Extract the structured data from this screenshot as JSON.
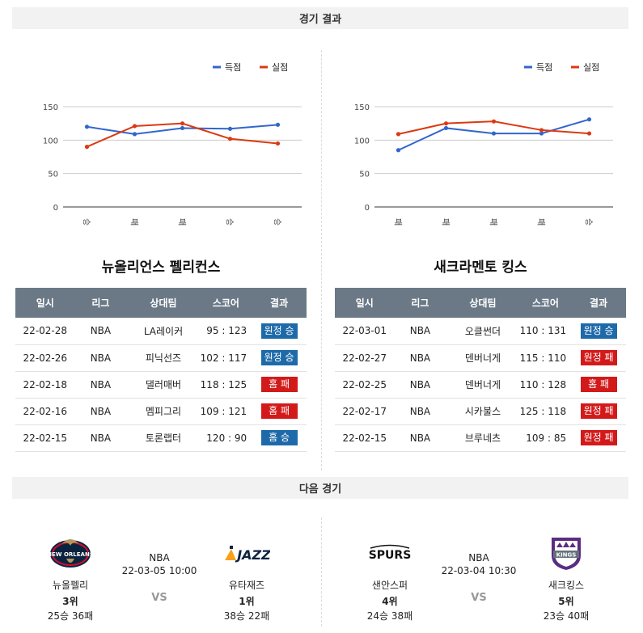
{
  "sections": {
    "results_title": "경기 결과",
    "next_title": "다음 경기"
  },
  "chart_data": [
    {
      "type": "line",
      "categories": [
        "승",
        "패",
        "패",
        "승",
        "승"
      ],
      "series": [
        {
          "name": "득점",
          "color": "#3366cc",
          "values": [
            120,
            109,
            118,
            117,
            123
          ]
        },
        {
          "name": "실점",
          "color": "#dc3912",
          "values": [
            90,
            121,
            125,
            102,
            95
          ]
        }
      ],
      "yticks": [
        0,
        50,
        100,
        150
      ],
      "ylim": [
        0,
        150
      ],
      "legend": "top-right",
      "grid": true
    },
    {
      "type": "line",
      "categories": [
        "패",
        "패",
        "패",
        "패",
        "승"
      ],
      "series": [
        {
          "name": "득점",
          "color": "#3366cc",
          "values": [
            85,
            118,
            110,
            110,
            131
          ]
        },
        {
          "name": "실점",
          "color": "#dc3912",
          "values": [
            109,
            125,
            128,
            115,
            110
          ]
        }
      ],
      "yticks": [
        0,
        50,
        100,
        150
      ],
      "ylim": [
        0,
        150
      ],
      "legend": "top-right",
      "grid": true
    }
  ],
  "left": {
    "team_name": "뉴올리언스 펠리컨스",
    "headers": [
      "일시",
      "리그",
      "상대팀",
      "스코어",
      "결과"
    ],
    "rows": [
      {
        "date": "22-02-28",
        "league": "NBA",
        "opponent": "LA레이커",
        "score": "95 : 123",
        "result": "원정 승",
        "color": "blue"
      },
      {
        "date": "22-02-26",
        "league": "NBA",
        "opponent": "피닉선즈",
        "score": "102 : 117",
        "result": "원정 승",
        "color": "blue"
      },
      {
        "date": "22-02-18",
        "league": "NBA",
        "opponent": "댈러매버",
        "score": "118 : 125",
        "result": "홈 패",
        "color": "red"
      },
      {
        "date": "22-02-16",
        "league": "NBA",
        "opponent": "멤피그리",
        "score": "109 : 121",
        "result": "홈 패",
        "color": "red"
      },
      {
        "date": "22-02-15",
        "league": "NBA",
        "opponent": "토론랩터",
        "score": "120 : 90",
        "result": "홈 승",
        "color": "blue"
      }
    ]
  },
  "right": {
    "team_name": "새크라멘토 킹스",
    "headers": [
      "일시",
      "리그",
      "상대팀",
      "스코어",
      "결과"
    ],
    "rows": [
      {
        "date": "22-03-01",
        "league": "NBA",
        "opponent": "오클썬더",
        "score": "110 : 131",
        "result": "원정 승",
        "color": "blue"
      },
      {
        "date": "22-02-27",
        "league": "NBA",
        "opponent": "덴버너게",
        "score": "115 : 110",
        "result": "원정 패",
        "color": "red"
      },
      {
        "date": "22-02-25",
        "league": "NBA",
        "opponent": "덴버너게",
        "score": "110 : 128",
        "result": "홈 패",
        "color": "red"
      },
      {
        "date": "22-02-17",
        "league": "NBA",
        "opponent": "시카불스",
        "score": "125 : 118",
        "result": "원정 패",
        "color": "red"
      },
      {
        "date": "22-02-15",
        "league": "NBA",
        "opponent": "브루네츠",
        "score": "109 : 85",
        "result": "원정 패",
        "color": "red"
      }
    ]
  },
  "next_games": [
    {
      "league": "NBA",
      "time": "22-03-05 10:00",
      "vs": "VS",
      "home": {
        "name": "뉴올펠리",
        "rank": "3위",
        "record": "25승 36패",
        "logo": "pelicans-logo",
        "logo_text": "NEW ORLEANS"
      },
      "away": {
        "name": "유타재즈",
        "rank": "1위",
        "record": "38승 22패",
        "logo": "jazz-logo",
        "logo_text": "JAZZ"
      }
    },
    {
      "league": "NBA",
      "time": "22-03-04 10:30",
      "vs": "VS",
      "home": {
        "name": "샌안스퍼",
        "rank": "4위",
        "record": "24승 38패",
        "logo": "spurs-logo",
        "logo_text": "SPURS"
      },
      "away": {
        "name": "새크킹스",
        "rank": "5위",
        "record": "23승 40패",
        "logo": "kings-logo",
        "logo_text": "KINGS"
      }
    }
  ]
}
